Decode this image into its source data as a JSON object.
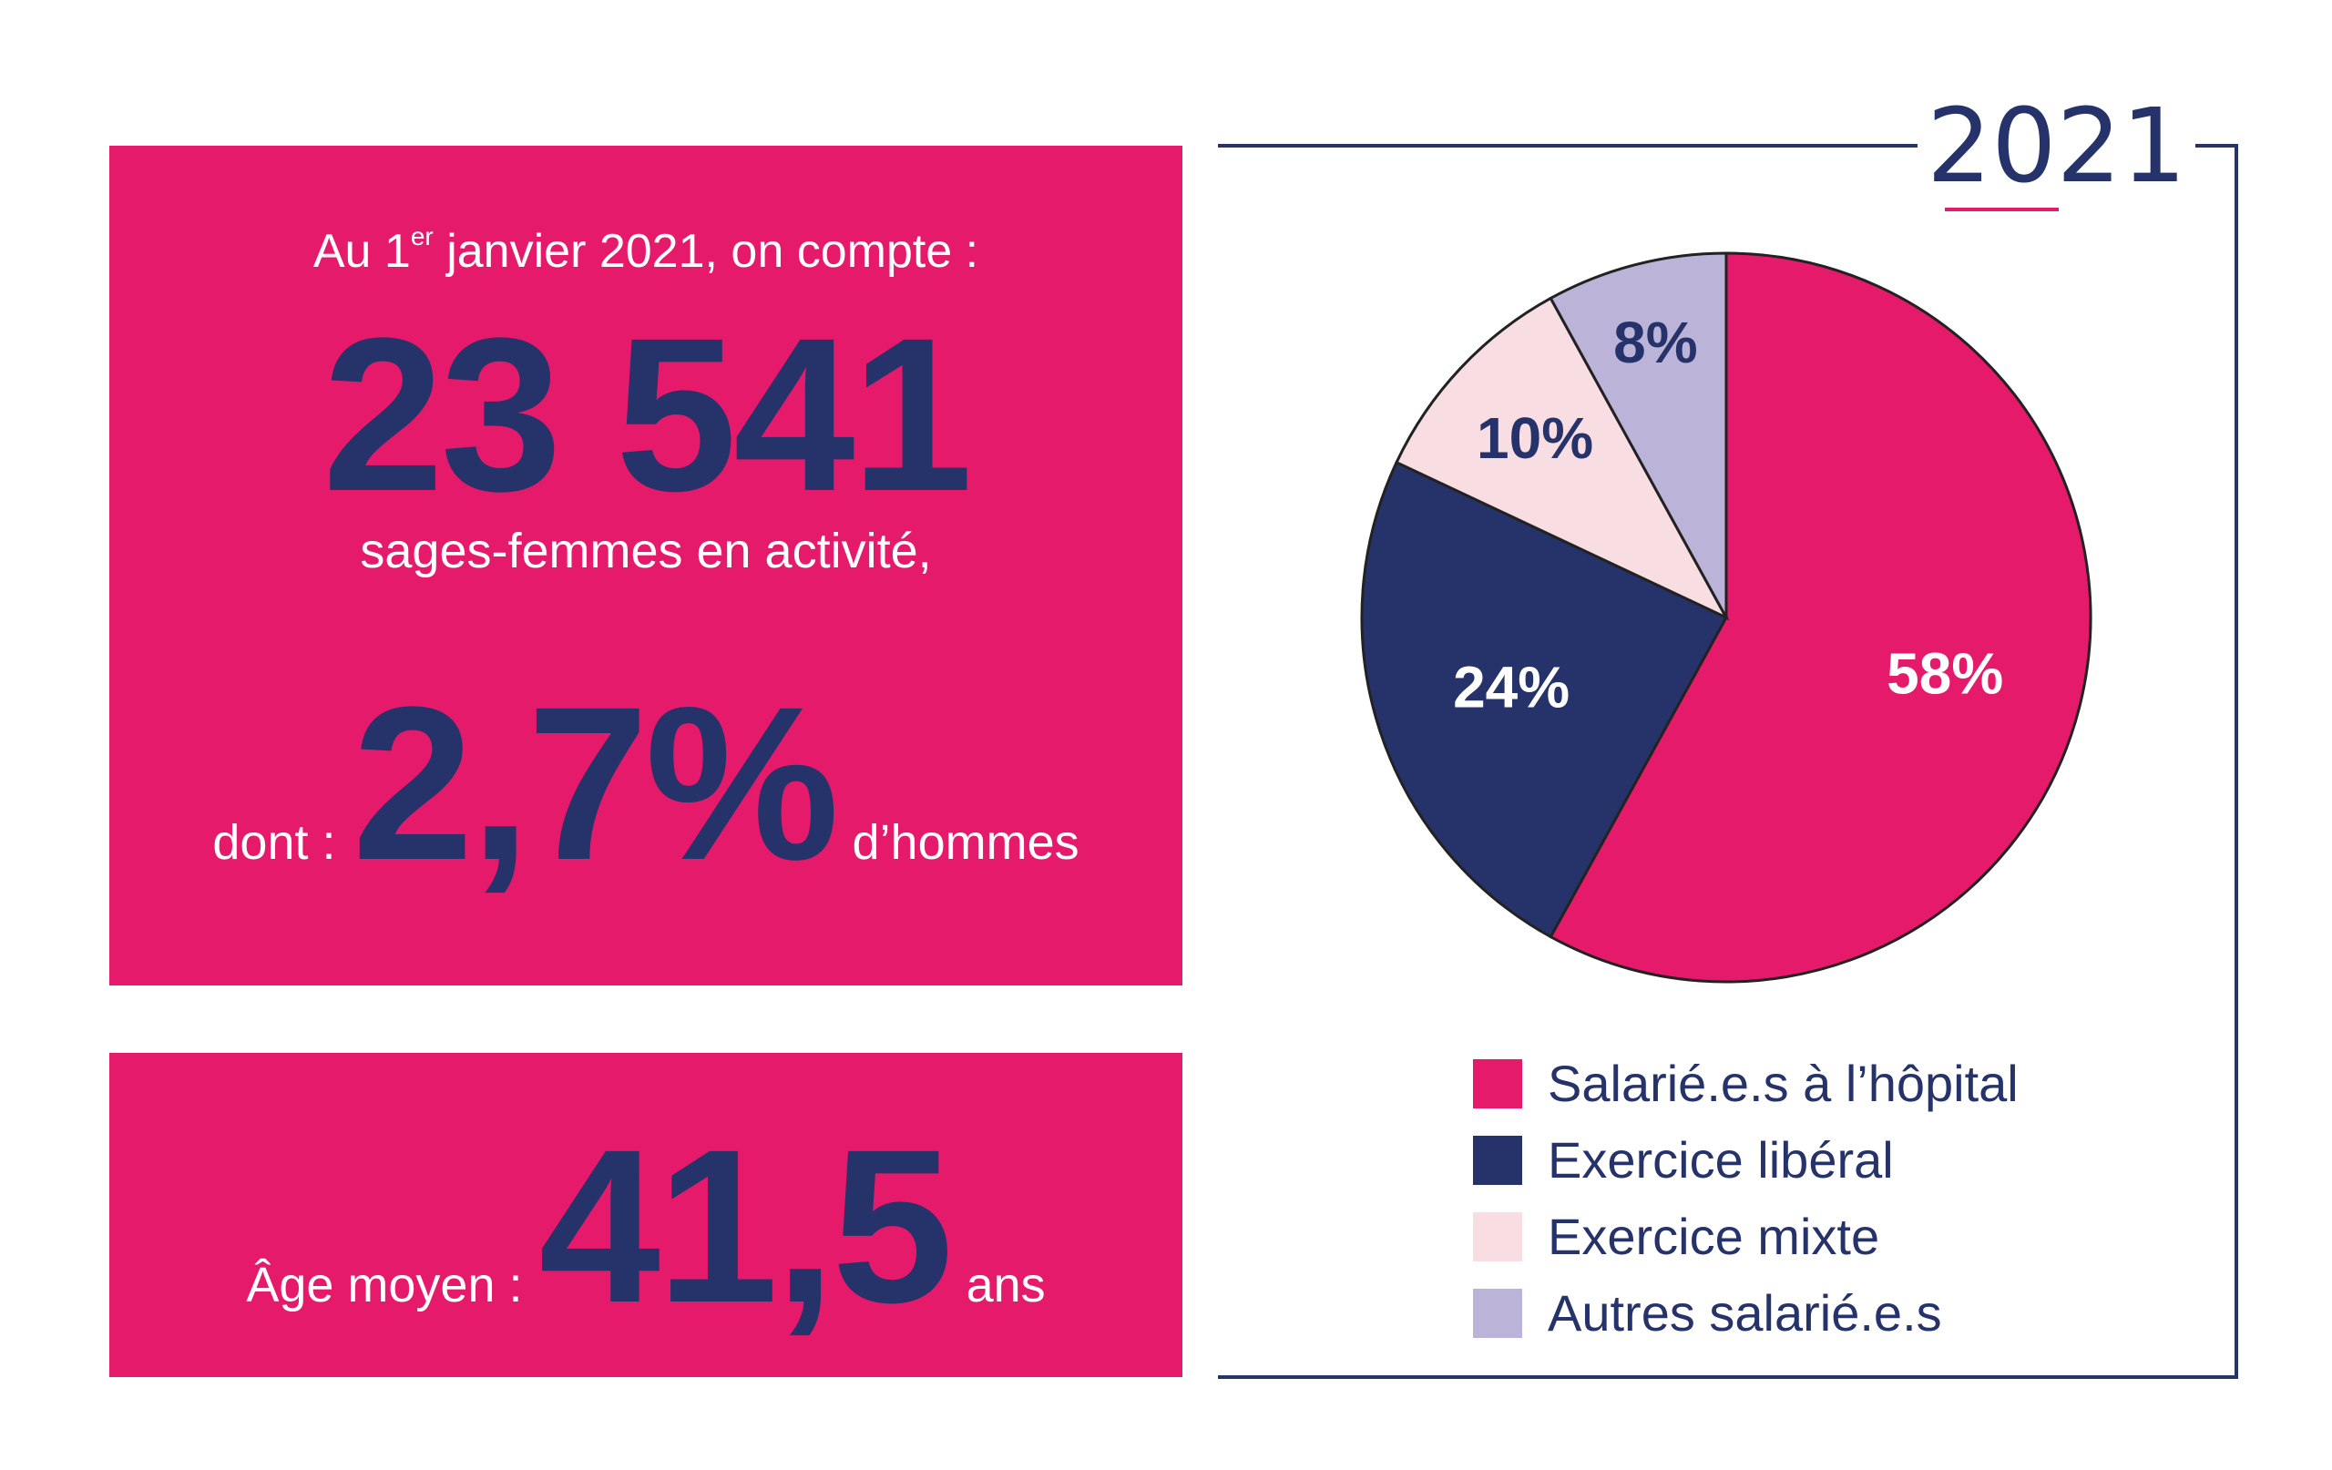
{
  "stats": {
    "intro_prefix": "Au 1",
    "intro_sup": "er",
    "intro_suffix": " janvier 2021, on compte :",
    "total_midwives": "23 541",
    "total_label": "sages-femmes en activité,",
    "men_prefix": "dont :",
    "men_share": "2,7%",
    "men_suffix": "d’hommes",
    "age_prefix": "Âge moyen :",
    "age_value": "41,5",
    "age_suffix": "ans"
  },
  "colors": {
    "pink": "#e61a6a",
    "navy": "#26336b",
    "light_pink": "#f8dde3",
    "lavender": "#bcb4d8",
    "white": "#ffffff"
  },
  "chart_data": {
    "type": "pie",
    "title": "2021",
    "legend_position": "bottom",
    "slices": [
      {
        "label": "Salarié.e.s à l’hôpital",
        "value": 58,
        "display": "58%",
        "color": "#e61a6a",
        "label_color": "#ffffff"
      },
      {
        "label": "Exercice libéral",
        "value": 24,
        "display": "24%",
        "color": "#26336b",
        "label_color": "#ffffff"
      },
      {
        "label": "Exercice mixte",
        "value": 10,
        "display": "10%",
        "color": "#f8dde3",
        "label_color": "#26336b"
      },
      {
        "label": "Autres salarié.e.s",
        "value": 8,
        "display": "8%",
        "color": "#bcb4d8",
        "label_color": "#26336b"
      }
    ]
  }
}
